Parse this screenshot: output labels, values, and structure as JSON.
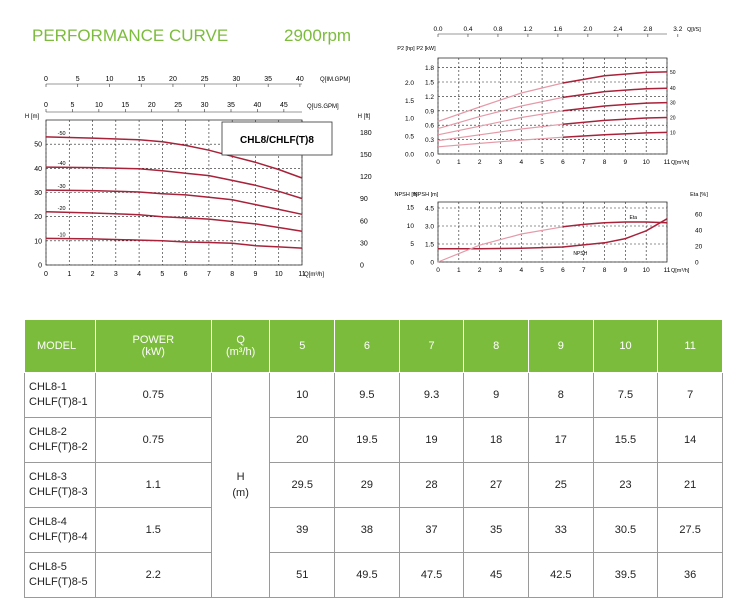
{
  "header": {
    "title": "PERFORMANCE CURVE",
    "speed": "2900rpm"
  },
  "chart_data": [
    {
      "type": "line",
      "title": "CHL8/CHLF(T)8",
      "xlabel": "Q[m³/h]",
      "ylabel": "H [m]",
      "ylabel_right": "H [ft]",
      "xlim": [
        0,
        11
      ],
      "ylim": [
        0,
        60
      ],
      "x_ticks": [
        0,
        1,
        2,
        3,
        4,
        5,
        6,
        7,
        8,
        9,
        10,
        11
      ],
      "y_ticks": [
        0,
        10,
        20,
        30,
        40,
        50
      ],
      "y_right_ticks": [
        0,
        30,
        60,
        90,
        120,
        150,
        180
      ],
      "top_axis_impgpm": {
        "label": "Q[IM.GPM]",
        "ticks": [
          0,
          5,
          10,
          15,
          20,
          25,
          30,
          35,
          40
        ]
      },
      "top_axis_usgpm": {
        "label": "Q[US.GPM]",
        "ticks": [
          0,
          5,
          10,
          15,
          20,
          25,
          30,
          35,
          40,
          45
        ]
      },
      "series": [
        {
          "name": "-10",
          "x": [
            0,
            2,
            4,
            5,
            6,
            7,
            8,
            9,
            10,
            11
          ],
          "values": [
            11,
            10.8,
            10.3,
            10,
            9.5,
            9.3,
            9,
            8,
            7.5,
            7
          ]
        },
        {
          "name": "-20",
          "x": [
            0,
            2,
            4,
            5,
            6,
            7,
            8,
            9,
            10,
            11
          ],
          "values": [
            22,
            21.5,
            20.8,
            20,
            19.5,
            19,
            18,
            17,
            15.5,
            14
          ]
        },
        {
          "name": "-30",
          "x": [
            0,
            2,
            4,
            5,
            6,
            7,
            8,
            9,
            10,
            11
          ],
          "values": [
            31,
            30.8,
            30.2,
            29.5,
            29,
            28,
            27,
            25,
            23,
            21
          ]
        },
        {
          "name": "-40",
          "x": [
            0,
            2,
            4,
            5,
            6,
            7,
            8,
            9,
            10,
            11
          ],
          "values": [
            40.5,
            40.3,
            39.8,
            39,
            38,
            37,
            35,
            33,
            30.5,
            27.5
          ]
        },
        {
          "name": "-50",
          "x": [
            0,
            2,
            4,
            5,
            6,
            7,
            8,
            9,
            10,
            11
          ],
          "values": [
            53,
            52.5,
            51.8,
            51,
            49.5,
            47.5,
            45,
            42.5,
            39.5,
            36
          ]
        }
      ]
    },
    {
      "type": "line",
      "xlabel": "Q[m³/h]",
      "ylabel": "P2 [kW]",
      "ylabel_left": "P2 [hp]",
      "xlim": [
        0,
        11
      ],
      "ylim": [
        0,
        2.0
      ],
      "x_ticks": [
        0,
        1,
        2,
        3,
        4,
        5,
        6,
        7,
        8,
        9,
        10,
        11
      ],
      "y_ticks": [
        0.0,
        0.3,
        0.6,
        0.9,
        1.2,
        1.5,
        1.8
      ],
      "y_left_ticks": [
        0.0,
        0.5,
        1.0,
        1.5,
        2.0
      ],
      "top_axis_ls": {
        "label": "Q[l/S]",
        "ticks": [
          0.0,
          0.4,
          0.8,
          1.2,
          1.6,
          2.0,
          2.4,
          2.8,
          3.2
        ]
      },
      "series": [
        {
          "name": "10",
          "x": [
            0,
            2,
            4,
            6,
            8,
            10,
            11
          ],
          "values": [
            0.15,
            0.22,
            0.29,
            0.35,
            0.4,
            0.44,
            0.45
          ]
        },
        {
          "name": "20",
          "x": [
            0,
            2,
            4,
            6,
            8,
            10,
            11
          ],
          "values": [
            0.28,
            0.4,
            0.52,
            0.62,
            0.7,
            0.75,
            0.76
          ]
        },
        {
          "name": "30",
          "x": [
            0,
            2,
            4,
            6,
            8,
            10,
            11
          ],
          "values": [
            0.4,
            0.58,
            0.76,
            0.9,
            1.0,
            1.06,
            1.07
          ]
        },
        {
          "name": "40",
          "x": [
            0,
            2,
            4,
            6,
            8,
            10,
            11
          ],
          "values": [
            0.53,
            0.78,
            1.0,
            1.18,
            1.3,
            1.36,
            1.37
          ]
        },
        {
          "name": "50",
          "x": [
            0,
            2,
            4,
            6,
            8,
            10,
            11
          ],
          "values": [
            0.68,
            0.98,
            1.27,
            1.48,
            1.63,
            1.7,
            1.71
          ]
        }
      ]
    },
    {
      "type": "line",
      "xlabel": "Q[m³/h]",
      "ylabel": "NPSH [m]",
      "ylabel_left": "NPSH [ft]",
      "ylabel_right": "Eta [%]",
      "xlim": [
        0,
        11
      ],
      "ylim": [
        0,
        5
      ],
      "x_ticks": [
        0,
        1,
        2,
        3,
        4,
        5,
        6,
        7,
        8,
        9,
        10,
        11
      ],
      "y_ticks": [
        0,
        1.5,
        3.0,
        4.5
      ],
      "y_left_ticks": [
        0,
        5,
        10,
        15
      ],
      "y_right_ticks": [
        0,
        20,
        40,
        60
      ],
      "series": [
        {
          "name": "NPSH",
          "x": [
            0,
            2,
            4,
            6,
            8,
            9,
            10,
            11
          ],
          "values": [
            1.1,
            1.1,
            1.15,
            1.25,
            1.6,
            1.95,
            2.6,
            3.6
          ]
        },
        {
          "name": "Eta",
          "x": [
            0,
            2,
            4,
            6,
            7,
            8,
            9,
            10,
            11
          ],
          "values": [
            0,
            21,
            35,
            44,
            47,
            49,
            50,
            50,
            49
          ]
        }
      ]
    },
    {
      "type": "table",
      "headers": [
        "MODEL",
        "POWER\n(kW)",
        "Q\n(m³/h)",
        "5",
        "6",
        "7",
        "8",
        "9",
        "10",
        "11"
      ],
      "unit_label": "H\n(m)",
      "rows": [
        {
          "model": "CHL8-1\nCHLF(T)8-1",
          "power": "0.75",
          "values": [
            "10",
            "9.5",
            "9.3",
            "9",
            "8",
            "7.5",
            "7"
          ]
        },
        {
          "model": "CHL8-2\nCHLF(T)8-2",
          "power": "0.75",
          "values": [
            "20",
            "19.5",
            "19",
            "18",
            "17",
            "15.5",
            "14"
          ]
        },
        {
          "model": "CHL8-3\nCHLF(T)8-3",
          "power": "1.1",
          "values": [
            "29.5",
            "29",
            "28",
            "27",
            "25",
            "23",
            "21"
          ]
        },
        {
          "model": "CHL8-4\nCHLF(T)8-4",
          "power": "1.5",
          "values": [
            "39",
            "38",
            "37",
            "35",
            "33",
            "30.5",
            "27.5"
          ]
        },
        {
          "model": "CHL8-5\nCHLF(T)8-5",
          "power": "2.2",
          "values": [
            "51",
            "49.5",
            "47.5",
            "45",
            "42.5",
            "39.5",
            "36"
          ]
        }
      ]
    }
  ],
  "colors": {
    "accent": "#7cbc3c",
    "curve": "#a8223a",
    "curve_light": "#e59aa8",
    "grid": "#222222"
  }
}
